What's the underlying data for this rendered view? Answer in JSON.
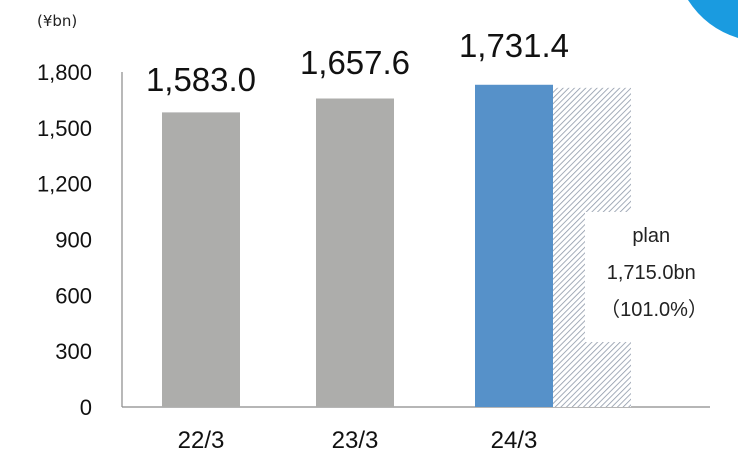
{
  "chart_data": {
    "type": "bar",
    "unit_label": "(¥bn)",
    "categories": [
      "22/3",
      "23/3",
      "24/3"
    ],
    "values": [
      1583.0,
      1657.6,
      1731.4
    ],
    "value_labels": [
      "1,583.0",
      "1,657.6",
      "1,731.4"
    ],
    "plan": {
      "category": "24/3",
      "value": 1715.0,
      "lines": [
        "plan",
        "1,715.0bn",
        "（101.0%）"
      ]
    },
    "yticks": [
      0,
      300,
      600,
      900,
      1200,
      1500,
      1800
    ],
    "ytick_labels": [
      "0",
      "300",
      "600",
      "900",
      "1,200",
      "1,500",
      "1,800"
    ],
    "ylim": [
      0,
      1800
    ],
    "grid": false,
    "colors": {
      "actual_past": "#adadab",
      "actual_current": "#5691c9",
      "plan_hatch": "#8d98a8",
      "corner_accent": "#1a9be0"
    }
  }
}
